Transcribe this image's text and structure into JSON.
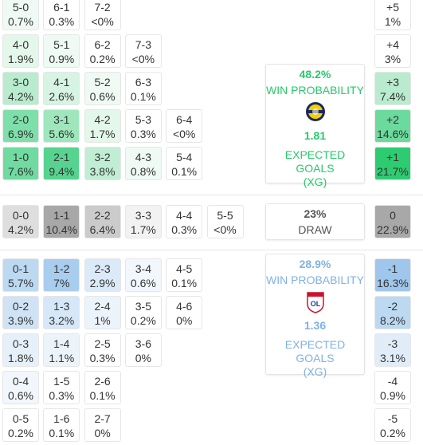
{
  "home_rows": [
    {
      "cells": [
        {
          "score": "5-0",
          "pct": "0.7%",
          "bg": "#eefaf3"
        },
        {
          "score": "6-1",
          "pct": "0.3%",
          "bg": "#ffffff"
        },
        {
          "score": "7-2",
          "pct": "<0%",
          "bg": "#ffffff"
        }
      ],
      "margin": {
        "label": "+5",
        "pct": "1%",
        "bg": "#ffffff"
      }
    },
    {
      "cells": [
        {
          "score": "4-0",
          "pct": "1.9%",
          "bg": "#e3f7eb"
        },
        {
          "score": "5-1",
          "pct": "0.9%",
          "bg": "#eefaf3"
        },
        {
          "score": "6-2",
          "pct": "0.2%",
          "bg": "#ffffff"
        },
        {
          "score": "7-3",
          "pct": "<0%",
          "bg": "#ffffff"
        }
      ],
      "margin": {
        "label": "+4",
        "pct": "3%",
        "bg": "#ffffff"
      }
    },
    {
      "cells": [
        {
          "score": "3-0",
          "pct": "4.2%",
          "bg": "#b9eccf"
        },
        {
          "score": "4-1",
          "pct": "2.6%",
          "bg": "#d7f4e3"
        },
        {
          "score": "5-2",
          "pct": "0.6%",
          "bg": "#eefaf3"
        },
        {
          "score": "6-3",
          "pct": "0.1%",
          "bg": "#ffffff"
        }
      ],
      "margin": {
        "label": "+3",
        "pct": "7.4%",
        "bg": "#b9eccf"
      }
    },
    {
      "cells": [
        {
          "score": "2-0",
          "pct": "6.9%",
          "bg": "#7fdfaa"
        },
        {
          "score": "3-1",
          "pct": "5.6%",
          "bg": "#9fe6bd"
        },
        {
          "score": "4-2",
          "pct": "1.7%",
          "bg": "#e3f7eb"
        },
        {
          "score": "5-3",
          "pct": "0.3%",
          "bg": "#ffffff"
        },
        {
          "score": "6-4",
          "pct": "<0%",
          "bg": "#ffffff"
        }
      ],
      "margin": {
        "label": "+2",
        "pct": "14.6%",
        "bg": "#6cd99d"
      }
    },
    {
      "cells": [
        {
          "score": "1-0",
          "pct": "7.6%",
          "bg": "#6fdba0"
        },
        {
          "score": "2-1",
          "pct": "9.4%",
          "bg": "#56d48f"
        },
        {
          "score": "3-2",
          "pct": "3.8%",
          "bg": "#c0eed4"
        },
        {
          "score": "4-3",
          "pct": "0.8%",
          "bg": "#eefaf3"
        },
        {
          "score": "5-4",
          "pct": "0.1%",
          "bg": "#ffffff"
        }
      ],
      "margin": {
        "label": "+1",
        "pct": "21.7%",
        "bg": "#2ecc71"
      }
    }
  ],
  "draw_row": {
    "cells": [
      {
        "score": "0-0",
        "pct": "4.2%",
        "bg": "#dedede"
      },
      {
        "score": "1-1",
        "pct": "10.4%",
        "bg": "#a8a8a8"
      },
      {
        "score": "2-2",
        "pct": "6.4%",
        "bg": "#cbcbcb"
      },
      {
        "score": "3-3",
        "pct": "1.7%",
        "bg": "#f2f2f2"
      },
      {
        "score": "4-4",
        "pct": "0.3%",
        "bg": "#ffffff"
      },
      {
        "score": "5-5",
        "pct": "<0%",
        "bg": "#ffffff"
      }
    ],
    "margin": {
      "label": "0",
      "pct": "22.9%",
      "bg": "#a8a8a8"
    }
  },
  "away_rows": [
    {
      "cells": [
        {
          "score": "0-1",
          "pct": "5.7%",
          "bg": "#bcd9f2"
        },
        {
          "score": "1-2",
          "pct": "7%",
          "bg": "#a9cdee"
        },
        {
          "score": "2-3",
          "pct": "2.9%",
          "bg": "#dbeaf8"
        },
        {
          "score": "3-4",
          "pct": "0.6%",
          "bg": "#f1f7fc"
        },
        {
          "score": "4-5",
          "pct": "0.1%",
          "bg": "#ffffff"
        }
      ],
      "margin": {
        "label": "-1",
        "pct": "16.3%",
        "bg": "#9fc7ec"
      }
    },
    {
      "cells": [
        {
          "score": "0-2",
          "pct": "3.9%",
          "bg": "#cfe3f5"
        },
        {
          "score": "1-3",
          "pct": "3.2%",
          "bg": "#d6e7f7"
        },
        {
          "score": "2-4",
          "pct": "1%",
          "bg": "#ecf4fb"
        },
        {
          "score": "3-5",
          "pct": "0.2%",
          "bg": "#ffffff"
        },
        {
          "score": "4-6",
          "pct": "0%",
          "bg": "#ffffff"
        }
      ],
      "margin": {
        "label": "-2",
        "pct": "8.2%",
        "bg": "#bcd9f2"
      }
    },
    {
      "cells": [
        {
          "score": "0-3",
          "pct": "1.8%",
          "bg": "#e6f0fa"
        },
        {
          "score": "1-4",
          "pct": "1.1%",
          "bg": "#ecf4fb"
        },
        {
          "score": "2-5",
          "pct": "0.3%",
          "bg": "#ffffff"
        },
        {
          "score": "3-6",
          "pct": "0%",
          "bg": "#ffffff"
        }
      ],
      "margin": {
        "label": "-3",
        "pct": "3.1%",
        "bg": "#e0edf9"
      }
    },
    {
      "cells": [
        {
          "score": "0-4",
          "pct": "0.6%",
          "bg": "#f1f7fc"
        },
        {
          "score": "1-5",
          "pct": "0.3%",
          "bg": "#ffffff"
        },
        {
          "score": "2-6",
          "pct": "0.1%",
          "bg": "#ffffff"
        }
      ],
      "margin": {
        "label": "-4",
        "pct": "0.9%",
        "bg": "#ffffff"
      }
    },
    {
      "cells": [
        {
          "score": "0-5",
          "pct": "0.2%",
          "bg": "#ffffff"
        },
        {
          "score": "1-6",
          "pct": "0.1%",
          "bg": "#ffffff"
        },
        {
          "score": "2-7",
          "pct": "0%",
          "bg": "#ffffff"
        }
      ],
      "margin": {
        "label": "-5",
        "pct": "0.2%",
        "bg": "#ffffff"
      }
    }
  ],
  "home_panel": {
    "win_pct": "48.2%",
    "win_label": "WIN PROBABILITY",
    "xg": "1.81",
    "xg_label": "EXPECTED GOALS (XG)",
    "color": "#27c96b"
  },
  "draw_panel": {
    "pct": "23%",
    "label": "DRAW",
    "color": "#555555"
  },
  "away_panel": {
    "win_pct": "28.9%",
    "win_label": "WIN PROBABILITY",
    "xg": "1.36",
    "xg_label": "EXPECTED GOALS (XG)",
    "color": "#7fb2e5"
  }
}
